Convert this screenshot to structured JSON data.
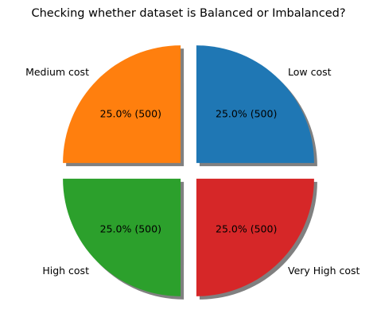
{
  "chart_data": {
    "type": "pie",
    "title": "Checking whether dataset is Balanced or Imbalanced?",
    "slices": [
      {
        "label": "Low cost",
        "value": 25.0,
        "count": 500,
        "color": "#1f77b4",
        "autopct": "25.0% (500)"
      },
      {
        "label": "Medium cost",
        "value": 25.0,
        "count": 500,
        "color": "#ff7f0e",
        "autopct": "25.0% (500)"
      },
      {
        "label": "High cost",
        "value": 25.0,
        "count": 500,
        "color": "#2ca02c",
        "autopct": "25.0% (500)"
      },
      {
        "label": "Very High cost",
        "value": 25.0,
        "count": 500,
        "color": "#d62728",
        "autopct": "25.0% (500)"
      }
    ],
    "start_angle_deg": 0,
    "direction": "counterclockwise",
    "exploded": true,
    "shadow": true,
    "legend": "none"
  }
}
